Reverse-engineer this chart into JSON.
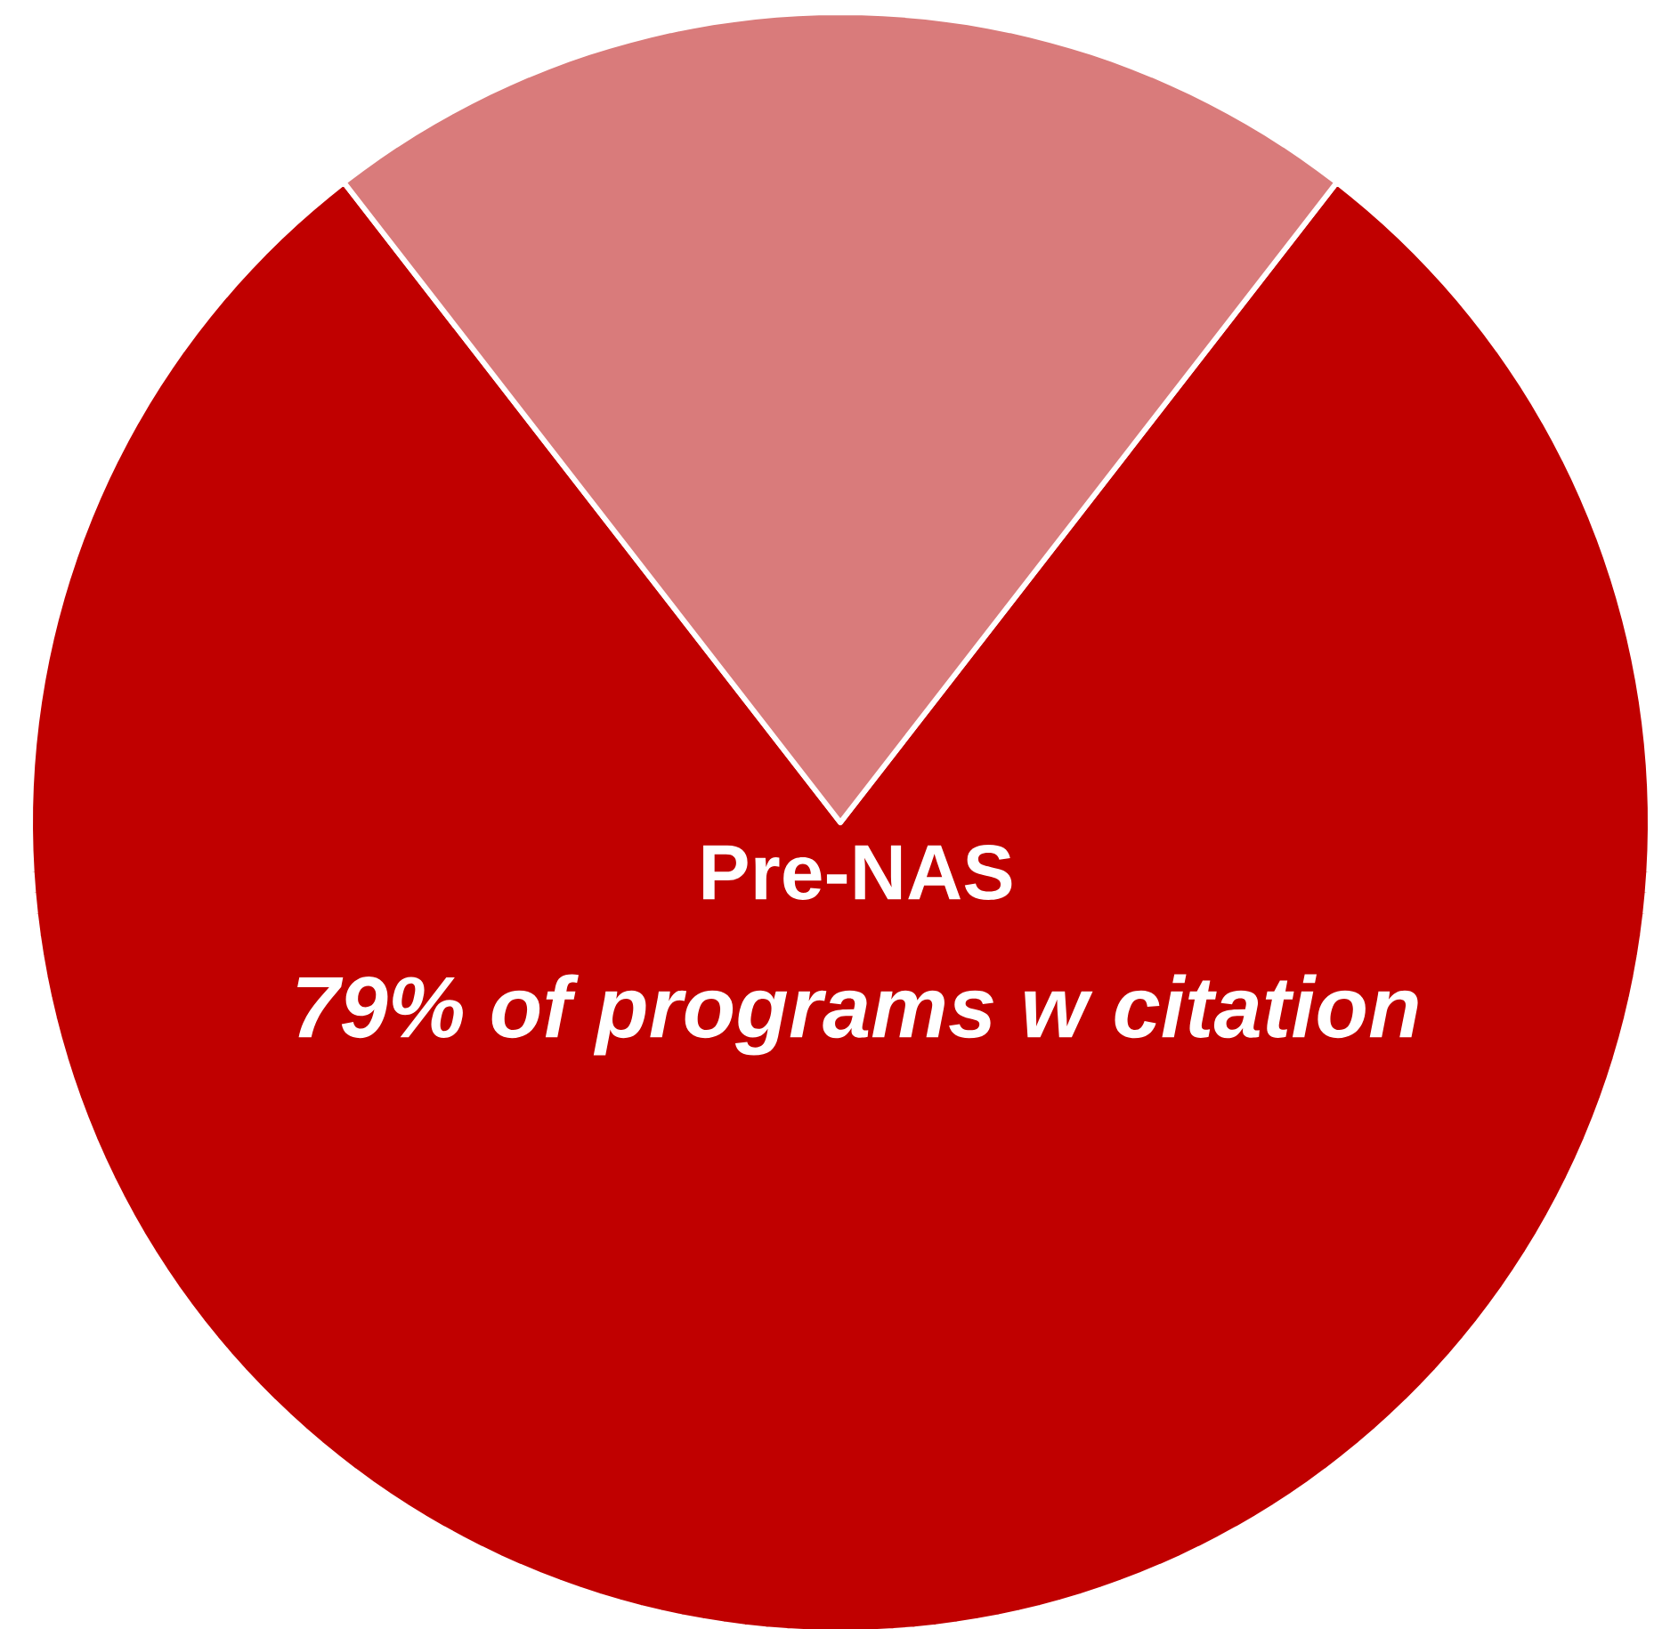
{
  "chart_data": {
    "type": "pie",
    "categories": [
      "Pre-NAS",
      null
    ],
    "values": [
      79,
      21
    ],
    "colors": [
      "#c00000",
      "#d97b7b"
    ],
    "value_labels": [
      "79% of programs w citation",
      null
    ]
  }
}
